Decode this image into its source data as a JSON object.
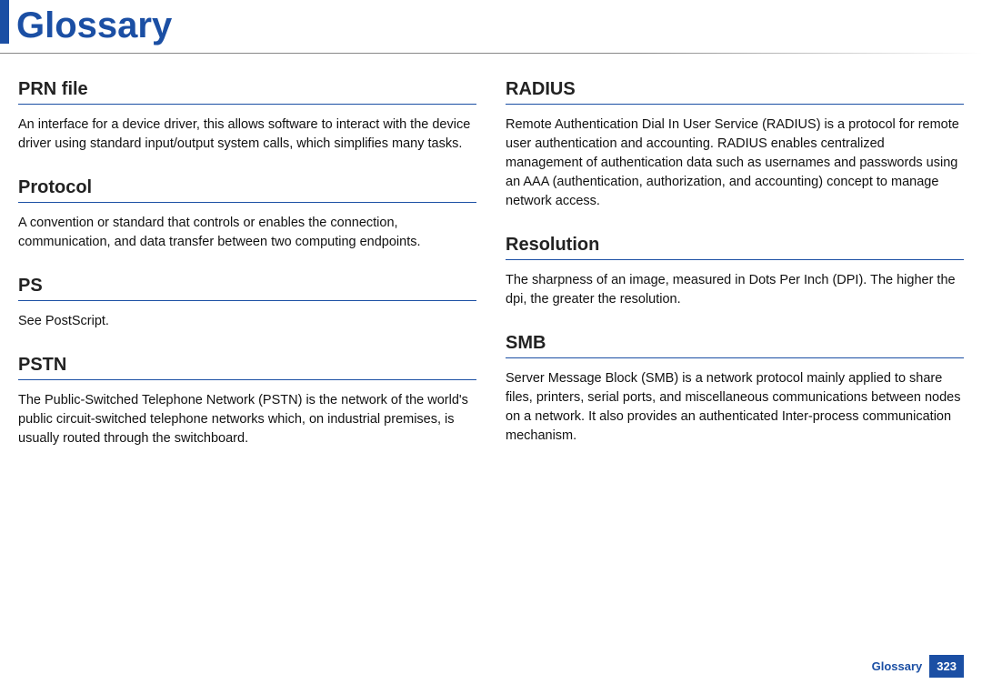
{
  "page": {
    "title": "Glossary",
    "accent_color": "#1b4fa4",
    "rule_color": "#1b4fa4",
    "background": "#ffffff"
  },
  "columns": {
    "left": [
      {
        "heading": "PRN file",
        "body": "An interface for a device driver, this allows software to interact with the device driver using standard input/output system calls, which simplifies many tasks."
      },
      {
        "heading": "Protocol",
        "body": "A convention or standard that controls or enables the connection, communication, and data transfer between two computing endpoints."
      },
      {
        "heading": "PS",
        "body": "See PostScript."
      },
      {
        "heading": "PSTN",
        "body": "The Public-Switched Telephone Network (PSTN) is the network of the world's public circuit-switched telephone networks which, on industrial premises, is usually routed through the switchboard."
      }
    ],
    "right": [
      {
        "heading": "RADIUS",
        "body": "Remote Authentication Dial In User Service (RADIUS) is a protocol for remote user authentication and accounting. RADIUS enables centralized management of authentication data such as usernames and passwords using an AAA (authentication, authorization, and accounting) concept to manage network access."
      },
      {
        "heading": "Resolution",
        "body": "The sharpness of an image, measured in Dots Per Inch (DPI). The higher the dpi, the greater the resolution."
      },
      {
        "heading": "SMB",
        "body": "Server Message Block (SMB) is a network protocol mainly applied to share files, printers, serial ports, and miscellaneous communications between nodes on a network. It also provides an authenticated Inter-process communication mechanism."
      }
    ]
  },
  "footer": {
    "label": "Glossary",
    "page_number": "323"
  }
}
